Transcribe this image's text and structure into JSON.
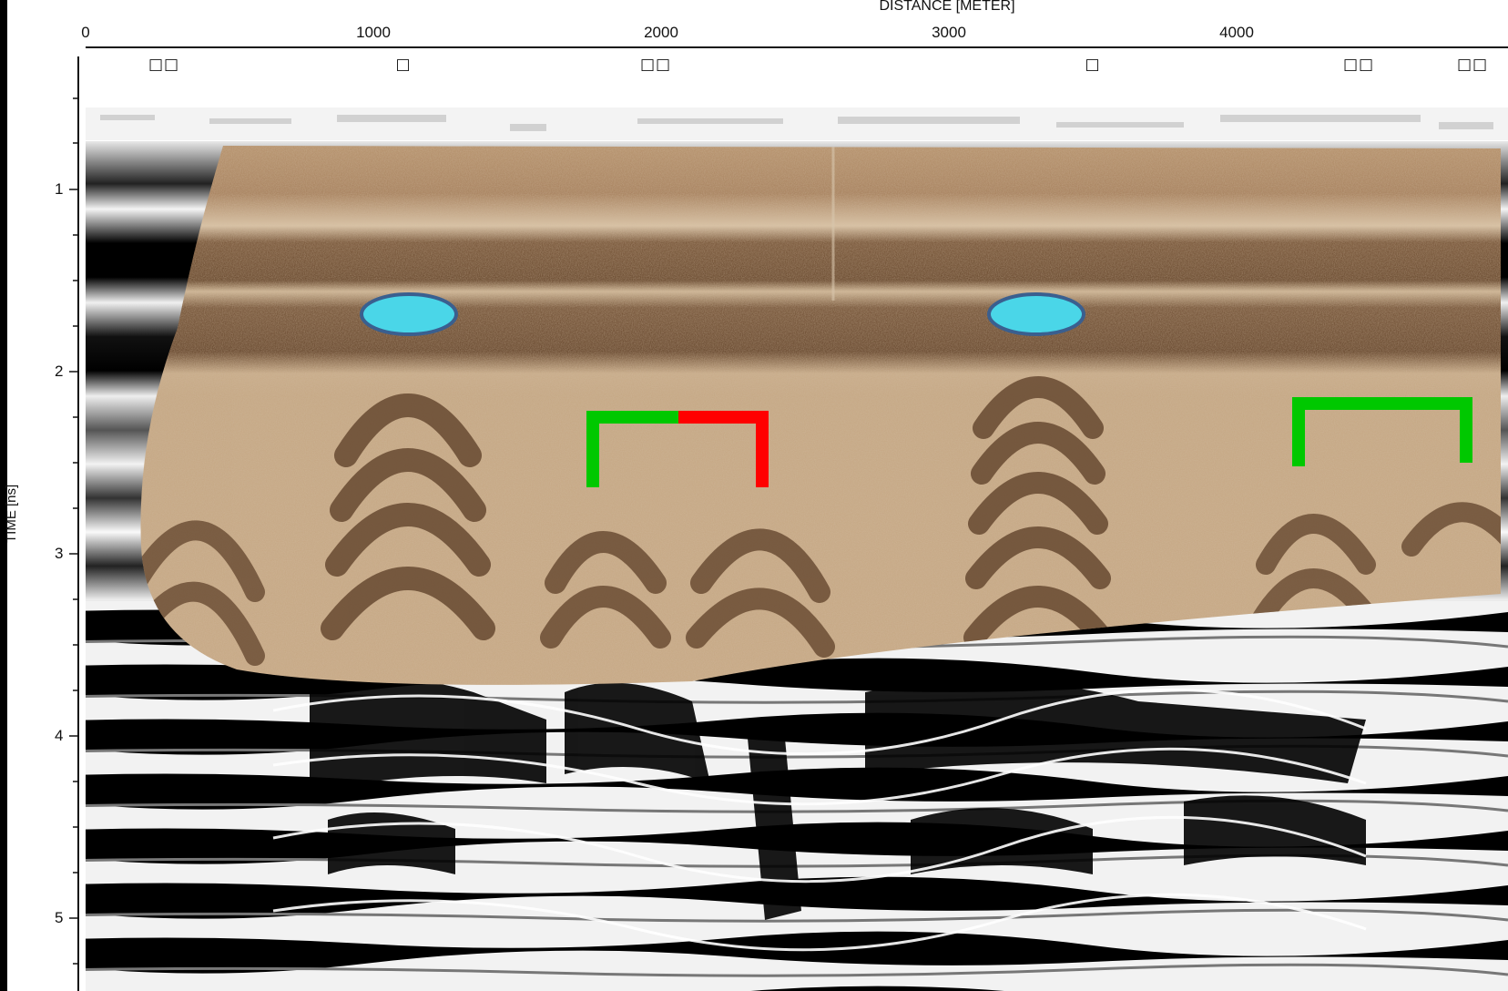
{
  "axis": {
    "x_title": "DISTANCE [METER]",
    "y_title": "TIME [ns]",
    "x_ticks": [
      "0",
      "1000",
      "2000",
      "3000",
      "4000"
    ],
    "y_ticks": [
      "1",
      "2",
      "3",
      "4",
      "5"
    ]
  },
  "markers": [
    "□□",
    "□",
    "□□",
    "□",
    "□□",
    "□□"
  ],
  "colors": {
    "sediment_overlay": "#a98760",
    "cyan_marker": "#4ad6e8",
    "cyan_outline": "#3a5f8f",
    "bracket_green": "#00c800",
    "bracket_red": "#ff0000",
    "background": "#000000"
  },
  "annotations": [
    {
      "type": "ellipse",
      "color": "cyan"
    },
    {
      "type": "ellipse",
      "color": "cyan"
    },
    {
      "type": "bracket",
      "color": "green-red"
    },
    {
      "type": "bracket",
      "color": "green"
    }
  ]
}
